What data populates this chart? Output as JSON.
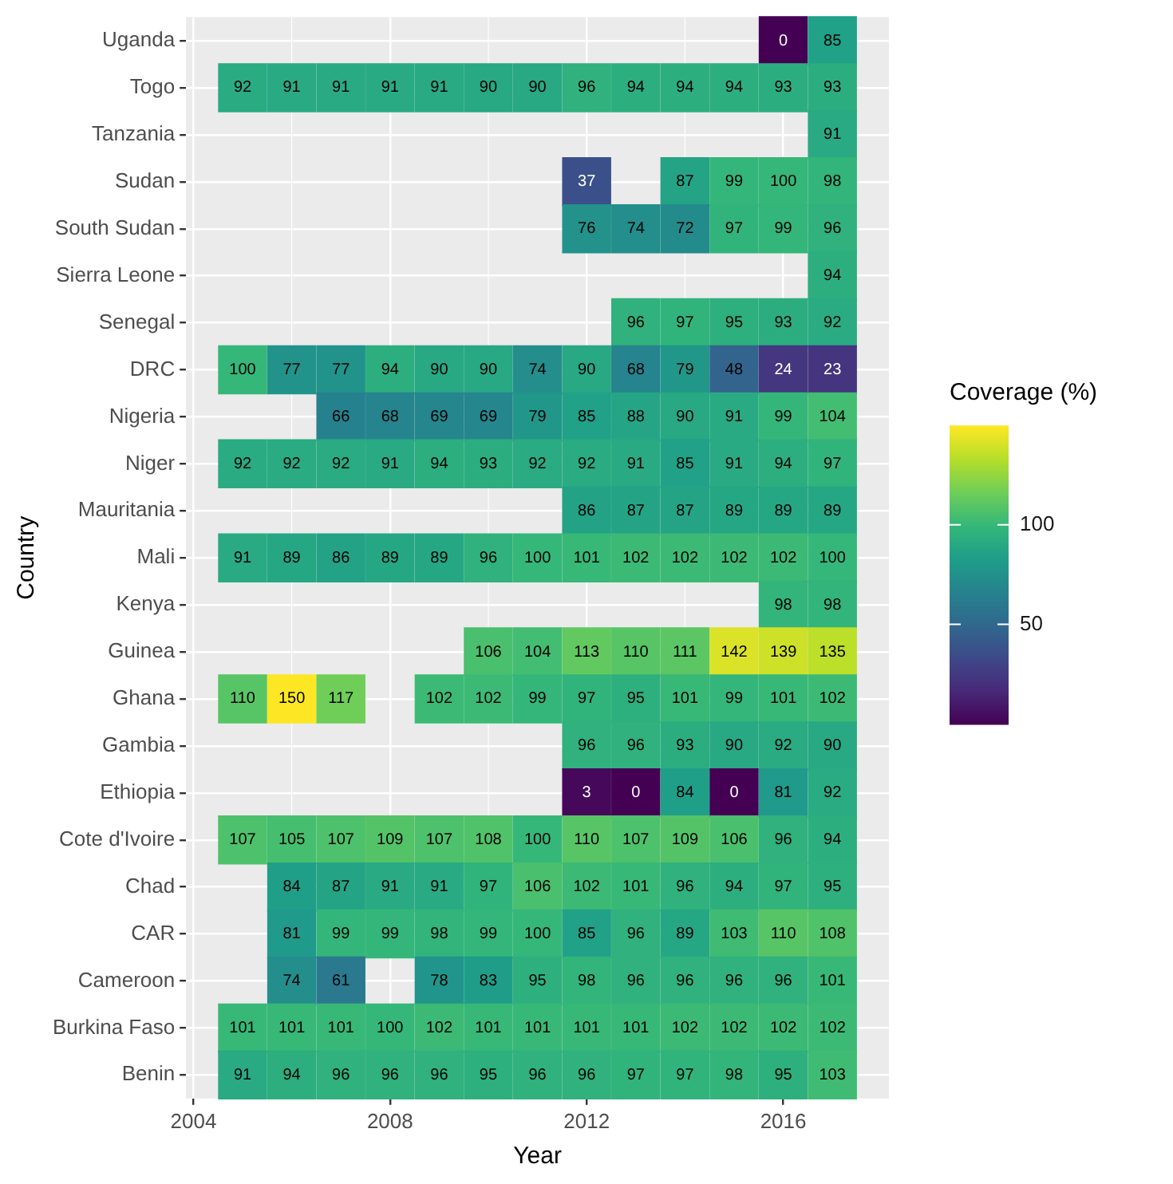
{
  "chart_data": {
    "type": "heatmap",
    "xlabel": "Year",
    "ylabel": "Country",
    "legend_title": "Coverage (%)",
    "x": [
      2005,
      2006,
      2007,
      2008,
      2009,
      2010,
      2011,
      2012,
      2013,
      2014,
      2015,
      2016,
      2017
    ],
    "xlim": [
      2003.85,
      2018.15
    ],
    "xticks": [
      2004,
      2008,
      2012,
      2016
    ],
    "y_categories": [
      "Uganda",
      "Togo",
      "Tanzania",
      "Sudan",
      "South Sudan",
      "Sierra Leone",
      "Senegal",
      "DRC",
      "Nigeria",
      "Niger",
      "Mauritania",
      "Mali",
      "Kenya",
      "Guinea",
      "Ghana",
      "Gambia",
      "Ethiopia",
      "Cote d'Ivoire",
      "Chad",
      "CAR",
      "Cameroon",
      "Burkina Faso",
      "Benin"
    ],
    "cells": [
      [
        null,
        null,
        null,
        null,
        null,
        null,
        null,
        null,
        null,
        null,
        null,
        0,
        85
      ],
      [
        92,
        91,
        91,
        91,
        91,
        90,
        90,
        96,
        94,
        94,
        94,
        93,
        93
      ],
      [
        null,
        null,
        null,
        null,
        null,
        null,
        null,
        null,
        null,
        null,
        null,
        null,
        91
      ],
      [
        null,
        null,
        null,
        null,
        null,
        null,
        null,
        37,
        null,
        87,
        99,
        100,
        98
      ],
      [
        null,
        null,
        null,
        null,
        null,
        null,
        null,
        76,
        74,
        72,
        97,
        99,
        96
      ],
      [
        null,
        null,
        null,
        null,
        null,
        null,
        null,
        null,
        null,
        null,
        null,
        null,
        94
      ],
      [
        null,
        null,
        null,
        null,
        null,
        null,
        null,
        null,
        96,
        97,
        95,
        93,
        92
      ],
      [
        100,
        77,
        77,
        94,
        90,
        90,
        74,
        90,
        68,
        79,
        48,
        24,
        23
      ],
      [
        null,
        null,
        66,
        68,
        69,
        69,
        79,
        85,
        88,
        90,
        91,
        99,
        104
      ],
      [
        92,
        92,
        92,
        91,
        94,
        93,
        92,
        92,
        91,
        85,
        91,
        94,
        97
      ],
      [
        null,
        null,
        null,
        null,
        null,
        null,
        null,
        86,
        87,
        87,
        89,
        89,
        89
      ],
      [
        91,
        89,
        86,
        89,
        89,
        96,
        100,
        101,
        102,
        102,
        102,
        102,
        100
      ],
      [
        null,
        null,
        null,
        null,
        null,
        null,
        null,
        null,
        null,
        null,
        null,
        98,
        98
      ],
      [
        null,
        null,
        null,
        null,
        null,
        106,
        104,
        113,
        110,
        111,
        142,
        139,
        135
      ],
      [
        110,
        150,
        117,
        null,
        102,
        102,
        99,
        97,
        95,
        101,
        99,
        101,
        102
      ],
      [
        null,
        null,
        null,
        null,
        null,
        null,
        null,
        96,
        96,
        93,
        90,
        92,
        90
      ],
      [
        null,
        null,
        null,
        null,
        null,
        null,
        null,
        3,
        0,
        84,
        0,
        81,
        92
      ],
      [
        107,
        105,
        107,
        109,
        107,
        108,
        100,
        110,
        107,
        109,
        106,
        96,
        94
      ],
      [
        null,
        84,
        87,
        91,
        91,
        97,
        106,
        102,
        101,
        96,
        94,
        97,
        95
      ],
      [
        null,
        81,
        99,
        99,
        98,
        99,
        100,
        85,
        96,
        89,
        103,
        110,
        108
      ],
      [
        null,
        74,
        61,
        null,
        78,
        83,
        95,
        98,
        96,
        96,
        96,
        96,
        101
      ],
      [
        101,
        101,
        101,
        100,
        102,
        101,
        101,
        101,
        101,
        102,
        102,
        102,
        102
      ],
      [
        91,
        94,
        96,
        96,
        96,
        95,
        96,
        96,
        97,
        97,
        98,
        95,
        103
      ]
    ],
    "clim": [
      0,
      150
    ],
    "cticks": [
      50,
      100
    ],
    "data_labels": true,
    "grid": true
  }
}
